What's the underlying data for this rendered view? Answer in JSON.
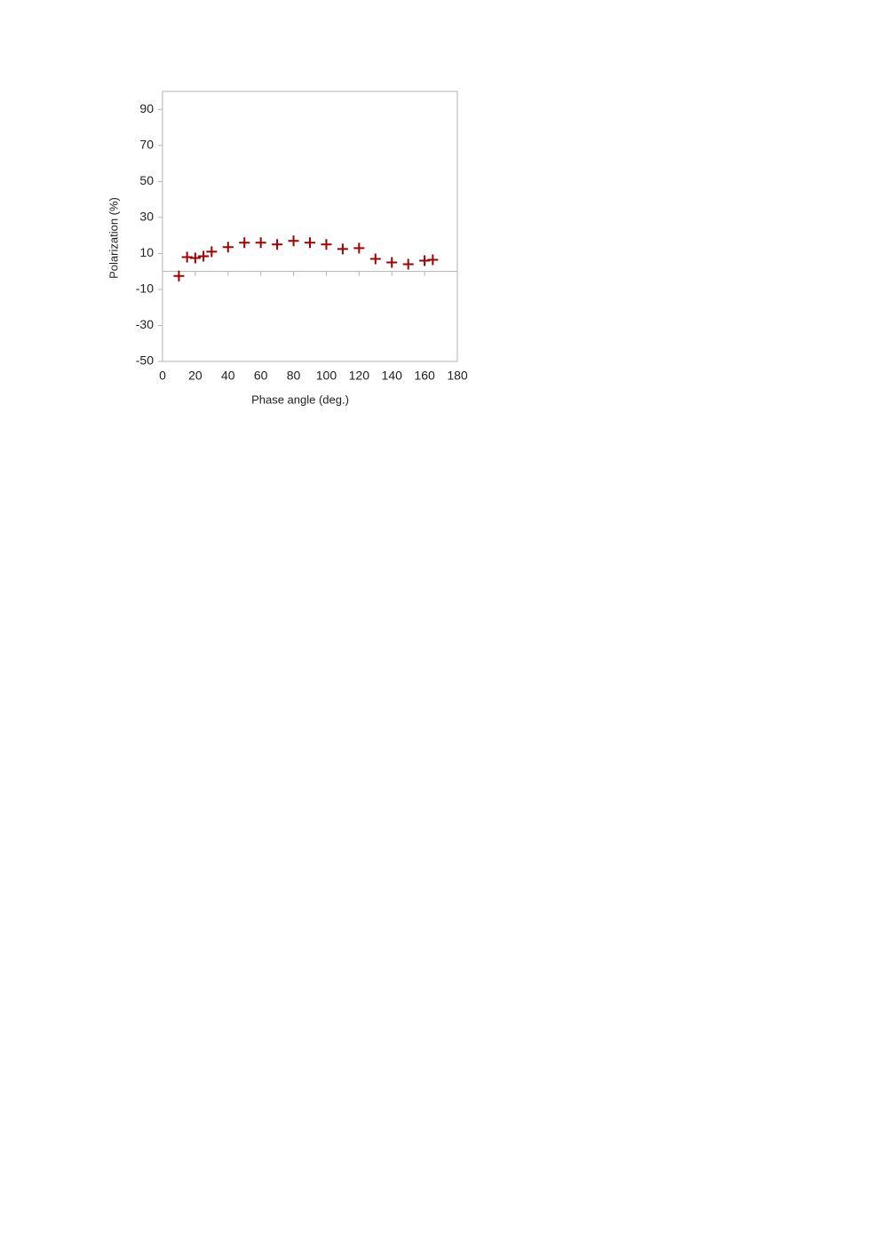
{
  "chart_data": {
    "type": "scatter",
    "x_label": "Phase angle (deg.)",
    "y_label": "Polarization (%)",
    "series": [
      {
        "name": "Polarization",
        "color": "#a00000",
        "x": [
          10,
          15,
          20,
          25,
          30,
          40,
          50,
          60,
          70,
          80,
          90,
          100,
          110,
          120,
          130,
          140,
          150,
          160,
          165
        ],
        "values": [
          -2.5,
          8,
          7.5,
          8.5,
          11,
          13.5,
          16,
          16,
          15,
          17,
          16,
          15,
          12.5,
          13,
          7,
          5,
          4,
          6,
          6.5
        ]
      }
    ],
    "xlim": [
      0,
      180
    ],
    "xticks": [
      0,
      20,
      40,
      60,
      80,
      100,
      120,
      140,
      160,
      180
    ],
    "ylim": [
      -50,
      100
    ],
    "yticks": [
      -50,
      -30,
      -10,
      10,
      30,
      50,
      70,
      90
    ],
    "grid": false
  }
}
